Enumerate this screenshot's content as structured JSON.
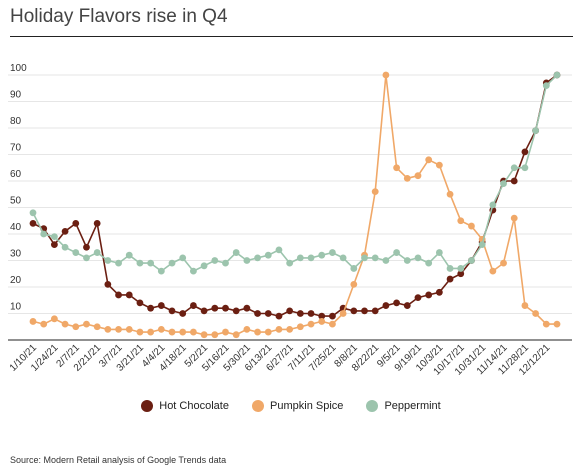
{
  "chart_data": {
    "type": "line",
    "title": "Holiday Flavors rise in Q4",
    "ylim": [
      0,
      100
    ],
    "y_ticks": [
      10,
      20,
      30,
      40,
      50,
      60,
      70,
      80,
      90,
      100
    ],
    "x_tick_labels": [
      "1/10/21",
      "1/24/21",
      "2/7/21",
      "2/21/21",
      "3/7/21",
      "3/21/21",
      "4/4/21",
      "4/18/21",
      "5/2/21",
      "5/16/21",
      "5/30/21",
      "6/13/21",
      "6/27/21",
      "7/11/21",
      "7/25/21",
      "8/8/21",
      "8/22/21",
      "9/5/21",
      "9/19/21",
      "10/3/21",
      "10/17/21",
      "10/31/21",
      "11/14/21",
      "11/28/21",
      "12/12/21"
    ],
    "grid": true,
    "legend_position": "bottom",
    "series": [
      {
        "name": "Hot Chocolate",
        "color": "#6b1f12",
        "values": [
          44,
          42,
          36,
          41,
          44,
          35,
          44,
          21,
          17,
          17,
          14,
          12,
          13,
          11,
          10,
          13,
          11,
          12,
          12,
          11,
          12,
          10,
          10,
          9,
          11,
          10,
          10,
          9,
          9,
          12,
          11,
          11,
          11,
          13,
          14,
          13,
          16,
          17,
          18,
          23,
          25,
          30,
          37,
          49,
          60,
          60,
          71,
          79,
          97,
          100
        ]
      },
      {
        "name": "Pumpkin Spice",
        "color": "#f0a868",
        "values": [
          7,
          6,
          8,
          6,
          5,
          6,
          5,
          4,
          4,
          4,
          3,
          3,
          4,
          3,
          3,
          3,
          2,
          2,
          3,
          2,
          4,
          3,
          3,
          4,
          4,
          5,
          6,
          7,
          6,
          10,
          21,
          32,
          56,
          100,
          65,
          61,
          62,
          68,
          66,
          55,
          45,
          43,
          38,
          26,
          29,
          46,
          13,
          10,
          6,
          6
        ]
      },
      {
        "name": "Peppermint",
        "color": "#9cc4ad",
        "values": [
          48,
          40,
          39,
          35,
          33,
          31,
          33,
          30,
          29,
          32,
          29,
          29,
          26,
          29,
          31,
          26,
          28,
          30,
          29,
          33,
          30,
          31,
          32,
          34,
          29,
          31,
          31,
          32,
          33,
          31,
          27,
          31,
          31,
          30,
          33,
          30,
          31,
          29,
          33,
          27,
          27,
          30,
          36,
          51,
          59,
          65,
          65,
          79,
          96,
          100
        ]
      }
    ]
  },
  "legend": {
    "hot_chocolate": "Hot Chocolate",
    "pumpkin_spice": "Pumpkin Spice",
    "peppermint": "Peppermint"
  },
  "source": "Source: Modern Retail analysis of Google Trends data"
}
